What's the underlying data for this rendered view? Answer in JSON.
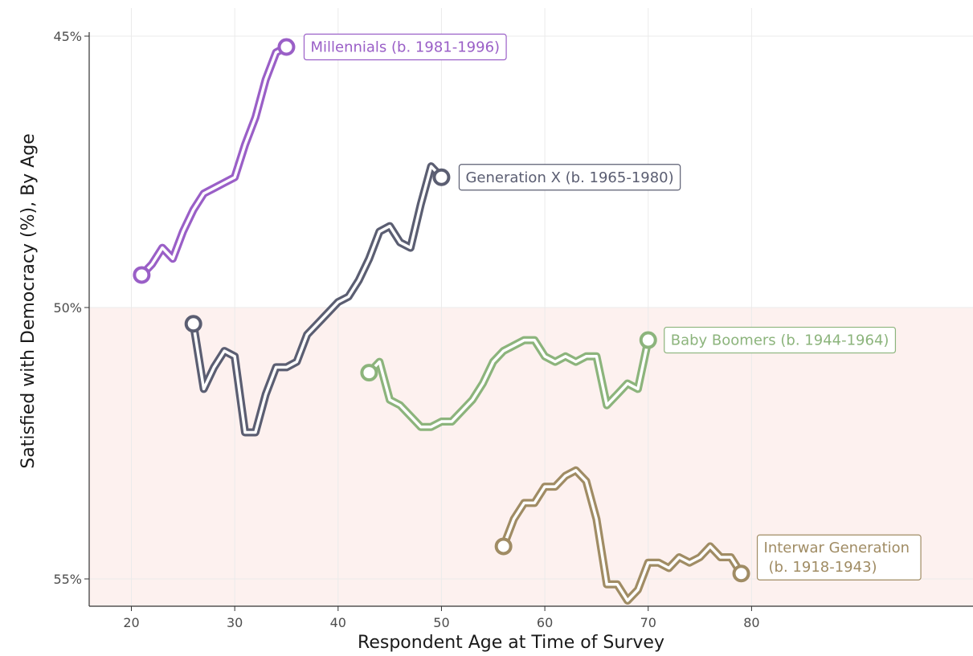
{
  "chart_data": {
    "type": "line",
    "title": "",
    "xlabel": "Respondent Age at Time of Survey",
    "ylabel": "Satisfied with Democracy (%), By Age",
    "xlim": [
      16,
      99
    ],
    "ylim": [
      44.5,
      55.6
    ],
    "x_ticks": [
      20,
      30,
      40,
      50,
      60,
      70,
      80
    ],
    "x_tick_labels": [
      "20",
      "30",
      "40",
      "50",
      "60",
      "70",
      "80"
    ],
    "y_ticks": [
      45,
      50,
      55
    ],
    "y_tick_labels": [
      "45%",
      "50%",
      "55%"
    ],
    "grid": true,
    "shaded_region": {
      "y_from": 44.5,
      "y_to": 50,
      "color": "#fdf1ef"
    },
    "series": [
      {
        "name": "Interwar Generation (b. 1918-1943)",
        "label_lines": [
          "Interwar Generation",
          "(b. 1918-1943)"
        ],
        "color": "#a08c64",
        "x": [
          56,
          57,
          58,
          59,
          60,
          61,
          62,
          63,
          64,
          65,
          66,
          67,
          68,
          69,
          70,
          71,
          72,
          73,
          74,
          75,
          76,
          77,
          78,
          79
        ],
        "y": [
          54.4,
          53.9,
          53.6,
          53.6,
          53.3,
          53.3,
          53.1,
          53.0,
          53.2,
          53.9,
          55.1,
          55.1,
          55.4,
          55.2,
          54.7,
          54.7,
          54.8,
          54.6,
          54.7,
          54.6,
          54.4,
          54.6,
          54.6,
          54.9
        ]
      },
      {
        "name": "Baby Boomers (b. 1944-1964)",
        "label_lines": [
          "Baby Boomers (b. 1944-1964)"
        ],
        "color": "#8cb47c",
        "x": [
          43,
          44,
          45,
          46,
          47,
          48,
          49,
          50,
          51,
          52,
          53,
          54,
          55,
          56,
          57,
          58,
          59,
          60,
          61,
          62,
          63,
          64,
          65,
          66,
          67,
          68,
          69,
          70
        ],
        "y": [
          51.2,
          51.0,
          51.7,
          51.8,
          52.0,
          52.2,
          52.2,
          52.1,
          52.1,
          51.9,
          51.7,
          51.4,
          51.0,
          50.8,
          50.7,
          50.6,
          50.6,
          50.9,
          51.0,
          50.9,
          51.0,
          50.9,
          50.9,
          51.8,
          51.6,
          51.4,
          51.5,
          50.6
        ]
      },
      {
        "name": "Generation X (b. 1965-1980)",
        "label_lines": [
          "Generation X (b. 1965-1980)"
        ],
        "color": "#5b5e72",
        "x": [
          26,
          27,
          28,
          29,
          30,
          31,
          32,
          33,
          34,
          35,
          36,
          37,
          38,
          39,
          40,
          41,
          42,
          43,
          44,
          45,
          46,
          47,
          48,
          49,
          50
        ],
        "y": [
          50.3,
          51.5,
          51.1,
          50.8,
          50.9,
          52.3,
          52.3,
          51.6,
          51.1,
          51.1,
          51.0,
          50.5,
          50.3,
          50.1,
          49.9,
          49.8,
          49.5,
          49.1,
          48.6,
          48.5,
          48.8,
          48.9,
          48.1,
          47.4,
          47.6
        ]
      },
      {
        "name": "Millennials (b. 1981-1996)",
        "label_lines": [
          "Millennials (b. 1981-1996)"
        ],
        "color": "#9a5fc7",
        "x": [
          21,
          22,
          23,
          24,
          25,
          26,
          27,
          28,
          29,
          30,
          31,
          32,
          33,
          34,
          35
        ],
        "y": [
          49.4,
          49.2,
          48.9,
          49.1,
          48.6,
          48.2,
          47.9,
          47.8,
          47.7,
          47.6,
          47.0,
          46.5,
          45.8,
          45.3,
          45.2
        ]
      }
    ]
  }
}
